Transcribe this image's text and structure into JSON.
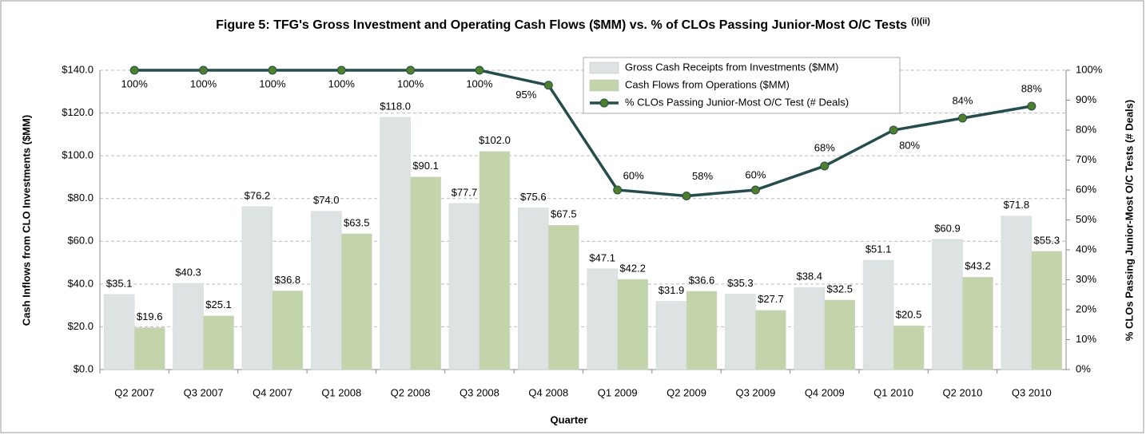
{
  "chart_data": {
    "type": "bar",
    "title": "Figure 5: TFG's Gross Investment and Operating Cash Flows ($MM) vs. % of CLOs Passing Junior-Most  O/C Tests",
    "title_note": "(i)(ii)",
    "x_label": "Quarter",
    "y_label": "Cash Inflows from CLO Investments ($MM)",
    "y2_label": "% CLOs Passing Junior-Most  O/C Tests (# Deals)",
    "categories": [
      "Q2 2007",
      "Q3 2007",
      "Q4 2007",
      "Q1 2008",
      "Q2 2008",
      "Q3 2008",
      "Q4 2008",
      "Q1 2009",
      "Q2 2009",
      "Q3 2009",
      "Q4 2009",
      "Q1 2010",
      "Q2 2010",
      "Q3 2010"
    ],
    "series": [
      {
        "name": "Gross Cash Receipts from Investments ($MM)",
        "type": "bar",
        "color": "#dce3e2",
        "values": [
          35.1,
          40.3,
          76.2,
          74.0,
          118.0,
          77.7,
          75.6,
          47.1,
          31.9,
          35.3,
          38.4,
          51.1,
          60.9,
          71.8
        ],
        "value_labels": [
          "$35.1",
          "$40.3",
          "$76.2",
          "$74.0",
          "$118.0",
          "$77.7",
          "$75.6",
          "$47.1",
          "$31.9",
          "$35.3",
          "$38.4",
          "$51.1",
          "$60.9",
          "$71.8"
        ]
      },
      {
        "name": "Cash Flows from Operations ($MM)",
        "type": "bar",
        "color": "#c4d4aa",
        "values": [
          19.6,
          25.1,
          36.8,
          63.5,
          90.1,
          102.0,
          67.5,
          42.2,
          36.6,
          27.7,
          32.5,
          20.5,
          43.2,
          55.3
        ],
        "value_labels": [
          "$19.6",
          "$25.1",
          "$36.8",
          "$63.5",
          "$90.1",
          "$102.0",
          "$67.5",
          "$42.2",
          "$36.6",
          "$27.7",
          "$32.5",
          "$20.5",
          "$43.2",
          "$55.3"
        ]
      },
      {
        "name": "% CLOs Passing Junior-Most  O/C Test (# Deals)",
        "type": "line",
        "axis": "y2",
        "color": "#264d4d",
        "marker_color": "#4f7f2c",
        "values": [
          100,
          100,
          100,
          100,
          100,
          100,
          95,
          60,
          58,
          60,
          68,
          80,
          84,
          88
        ],
        "value_labels": [
          "100%",
          "100%",
          "100%",
          "100%",
          "100%",
          "100%",
          "95%",
          "60%",
          "58%",
          "60%",
          "68%",
          "80%",
          "84%",
          "88%"
        ]
      }
    ],
    "ylim": [
      0,
      140
    ],
    "yticks": [
      {
        "value": 0,
        "label": "$0.0"
      },
      {
        "value": 20,
        "label": "$20.0"
      },
      {
        "value": 40,
        "label": "$40.0"
      },
      {
        "value": 60,
        "label": "$60.0"
      },
      {
        "value": 80,
        "label": "$80.0"
      },
      {
        "value": 100,
        "label": "$100.0"
      },
      {
        "value": 120,
        "label": "$120.0"
      },
      {
        "value": 140,
        "label": "$140.0"
      }
    ],
    "y2lim": [
      0,
      100
    ],
    "y2ticks": [
      {
        "value": 0,
        "label": "0%"
      },
      {
        "value": 10,
        "label": "10%"
      },
      {
        "value": 20,
        "label": "20%"
      },
      {
        "value": 30,
        "label": "30%"
      },
      {
        "value": 40,
        "label": "40%"
      },
      {
        "value": 50,
        "label": "50%"
      },
      {
        "value": 60,
        "label": "60%"
      },
      {
        "value": 70,
        "label": "70%"
      },
      {
        "value": 80,
        "label": "80%"
      },
      {
        "value": 90,
        "label": "90%"
      },
      {
        "value": 100,
        "label": "100%"
      }
    ],
    "grid": true,
    "legend": "top"
  }
}
